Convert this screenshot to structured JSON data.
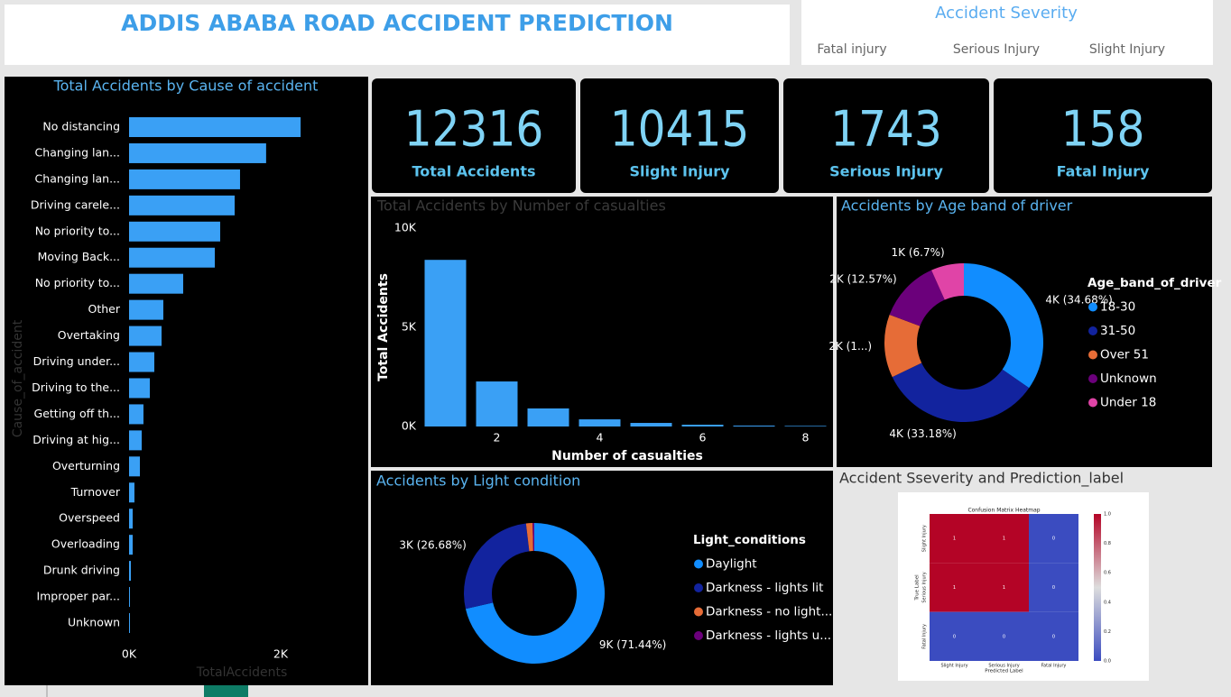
{
  "header": {
    "title": "ADDIS ABABA ROAD ACCIDENT PREDICTION"
  },
  "slicer": {
    "title": "Accident Severity",
    "options": [
      "Fatal injury",
      "Serious Injury",
      "Slight Injury"
    ]
  },
  "kpis": [
    {
      "value": 12316,
      "label": "Total Accidents"
    },
    {
      "value": 10415,
      "label": "Slight Injury"
    },
    {
      "value": 1743,
      "label": "Serious Injury"
    },
    {
      "value": 158,
      "label": "Fatal Injury"
    }
  ],
  "chart_data": [
    {
      "type": "hbar",
      "title": "Total Accidents by Cause of accident",
      "x_label": "TotalAccidents",
      "y_label": "Cause_of_accident",
      "color": "#3aa0f5",
      "categories": [
        "No distancing",
        "Changing lan...",
        "Changing lan...",
        "Driving carele...",
        "No priority to...",
        "Moving Back...",
        "No priority to...",
        "Other",
        "Overtaking",
        "Driving under...",
        "Driving to the...",
        "Getting off th...",
        "Driving at hig...",
        "Overturning",
        "Turnover",
        "Overspeed",
        "Overloading",
        "Drunk driving",
        "Improper par...",
        "Unknown"
      ],
      "values": [
        2263,
        1808,
        1464,
        1393,
        1202,
        1131,
        714,
        452,
        429,
        333,
        274,
        190,
        167,
        143,
        71,
        48,
        48,
        24,
        12,
        12
      ],
      "xlim": [
        0,
        2400
      ],
      "xticks": [
        {
          "value": 0,
          "label": "0K"
        },
        {
          "value": 2000,
          "label": "2K"
        }
      ]
    },
    {
      "type": "bar",
      "title": "Total Accidents by Number of casualties",
      "x_label": "Number of casualties",
      "y_label": "Total Accidents",
      "color": "#3aa0f5",
      "x": [
        1,
        2,
        3,
        4,
        5,
        6,
        7,
        8
      ],
      "values": [
        8400,
        2270,
        910,
        360,
        180,
        90,
        45,
        30
      ],
      "xlim": [
        0.5,
        8.5
      ],
      "xticks": [
        2,
        4,
        6,
        8
      ],
      "ylim": [
        0,
        10000
      ],
      "yticks": [
        {
          "value": 0,
          "label": "0K"
        },
        {
          "value": 5000,
          "label": "5K"
        },
        {
          "value": 10000,
          "label": "10K"
        }
      ]
    },
    {
      "type": "donut",
      "title": "Accidents by Age band of driver",
      "legend_title": "Age_band_of_driver",
      "categories": [
        "18-30",
        "31-50",
        "Over 51",
        "Unknown",
        "Under 18"
      ],
      "colors": [
        "#118dff",
        "#12239e",
        "#e66c37",
        "#6b007b",
        "#e044a7"
      ],
      "values": [
        34.68,
        33.18,
        12.87,
        12.57,
        6.7
      ],
      "value_labels": [
        "4K (34.68%)",
        "4K (33.18%)",
        "2K (1...)",
        "2K (12.57%)",
        "1K (6.7%)"
      ]
    },
    {
      "type": "donut",
      "title": "Accidents by Light condition",
      "legend_title": "Light_conditions",
      "categories": [
        "Daylight",
        "Darkness - lights lit",
        "Darkness - no light...",
        "Darkness - lights u..."
      ],
      "colors": [
        "#118dff",
        "#12239e",
        "#e66c37",
        "#6b007b"
      ],
      "values": [
        71.44,
        26.68,
        1.5,
        0.38
      ],
      "value_labels": [
        "9K (71.44%)",
        "3K (26.68%)",
        null,
        null
      ]
    },
    {
      "type": "heatmap",
      "title": "Accident Sseverity and Prediction_label",
      "subtitle": "Confusion Matrix Heatmap",
      "x_label": "Predicted Label",
      "y_label": "True Label",
      "categories": [
        "Slight Injury",
        "Serious Injury",
        "Fatal Injury"
      ],
      "values": [
        [
          1,
          1,
          0
        ],
        [
          1,
          1,
          0
        ],
        [
          0,
          0,
          0
        ]
      ],
      "zlim": [
        0,
        1
      ],
      "zticks": [
        {
          "value": 0,
          "label": "0.0"
        },
        0.2,
        0.4,
        0.6,
        0.8,
        {
          "value": 1,
          "label": "1.0"
        }
      ],
      "colors": [
        "#3b4cc0",
        "#dddddd",
        "#b40426"
      ]
    }
  ]
}
